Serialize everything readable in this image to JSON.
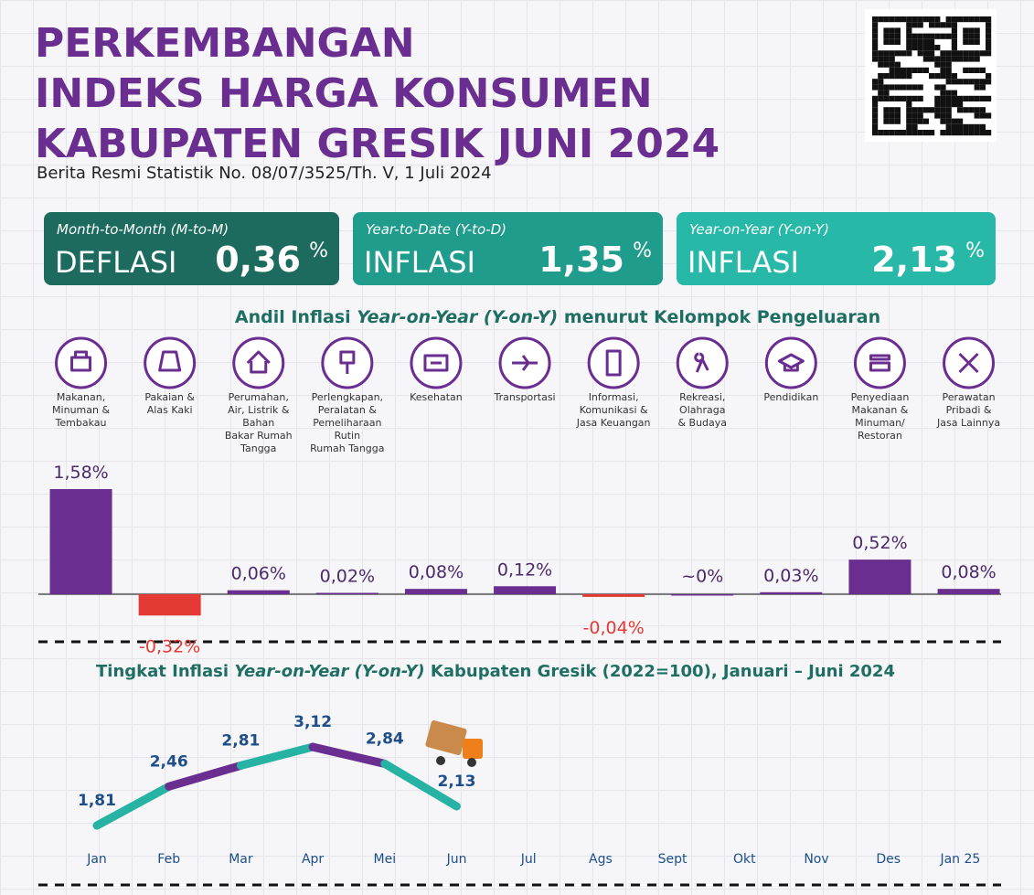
{
  "header": {
    "title_lines": [
      "PERKEMBANGAN",
      "INDEKS HARGA KONSUMEN",
      "KABUPATEN GRESIK JUNI 2024"
    ],
    "subtitle": "Berita Resmi Statistik No. 08/07/3525/Th. V, 1 Juli 2024"
  },
  "cards": [
    {
      "label": "Month-to-Month (M-to-M)",
      "kind": "DEFLASI",
      "value": "0,36",
      "unit": "%",
      "color": "#1d6b5f"
    },
    {
      "label": "Year-to-Date (Y-to-D)",
      "kind": "INFLASI",
      "value": "1,35",
      "unit": "%",
      "color": "#1f9c8b"
    },
    {
      "label": "Year-on-Year (Y-on-Y)",
      "kind": "INFLASI",
      "value": "2,13",
      "unit": "%",
      "color": "#27b8a8"
    }
  ],
  "chart_data": [
    {
      "type": "bar",
      "title_parts": [
        "Andil Inflasi ",
        "Year-on-Year (Y-on-Y)",
        " menurut Kelompok Pengeluaran"
      ],
      "categories": [
        "Makanan,\nMinuman &\nTembakau",
        "Pakaian &\nAlas Kaki",
        "Perumahan,\nAir, Listrik &\nBahan\nBakar Rumah\nTangga",
        "Perlengkapan,\nPeralatan &\nPemeliharaan\nRutin\nRumah Tangga",
        "Kesehatan",
        "Transportasi",
        "Informasi,\nKomunikasi &\nJasa Keuangan",
        "Rekreasi,\nOlahraga\n& Budaya",
        "Pendidikan",
        "Penyediaan\nMakanan &\nMinuman/\nRestoran",
        "Perawatan\nPribadi &\nJasa Lainnya"
      ],
      "values": [
        1.58,
        -0.32,
        0.06,
        0.02,
        0.08,
        0.12,
        -0.04,
        0,
        0.03,
        0.52,
        0.08
      ],
      "value_labels": [
        "1,58%",
        "-0,32%",
        "0,06%",
        "0,02%",
        "0,08%",
        "0,12%",
        "-0,04%",
        "~0%",
        "0,03%",
        "0,52%",
        "0,08%"
      ],
      "color": "#6a2d90",
      "negative_color": "#e53935"
    },
    {
      "type": "line",
      "title_parts": [
        "Tingkat Inflasi ",
        "Year-on-Year (Y-on-Y)",
        " Kabupaten Gresik (2022=100), Januari – Juni 2024"
      ],
      "categories": [
        "Jan",
        "Feb",
        "Mar",
        "Apr",
        "Mei",
        "Jun",
        "Jul",
        "Ags",
        "Sept",
        "Okt",
        "Nov",
        "Des",
        "Jan 25"
      ],
      "values": [
        1.81,
        2.46,
        2.81,
        3.12,
        2.84,
        2.13,
        null,
        null,
        null,
        null,
        null,
        null,
        null
      ],
      "value_labels": [
        "1,81",
        "2,46",
        "2,81",
        "3,12",
        "2,84",
        "2,13",
        null,
        null,
        null,
        null,
        null,
        null,
        null
      ],
      "color": "#27b3a4",
      "alt_color": "#6a2d90"
    }
  ]
}
